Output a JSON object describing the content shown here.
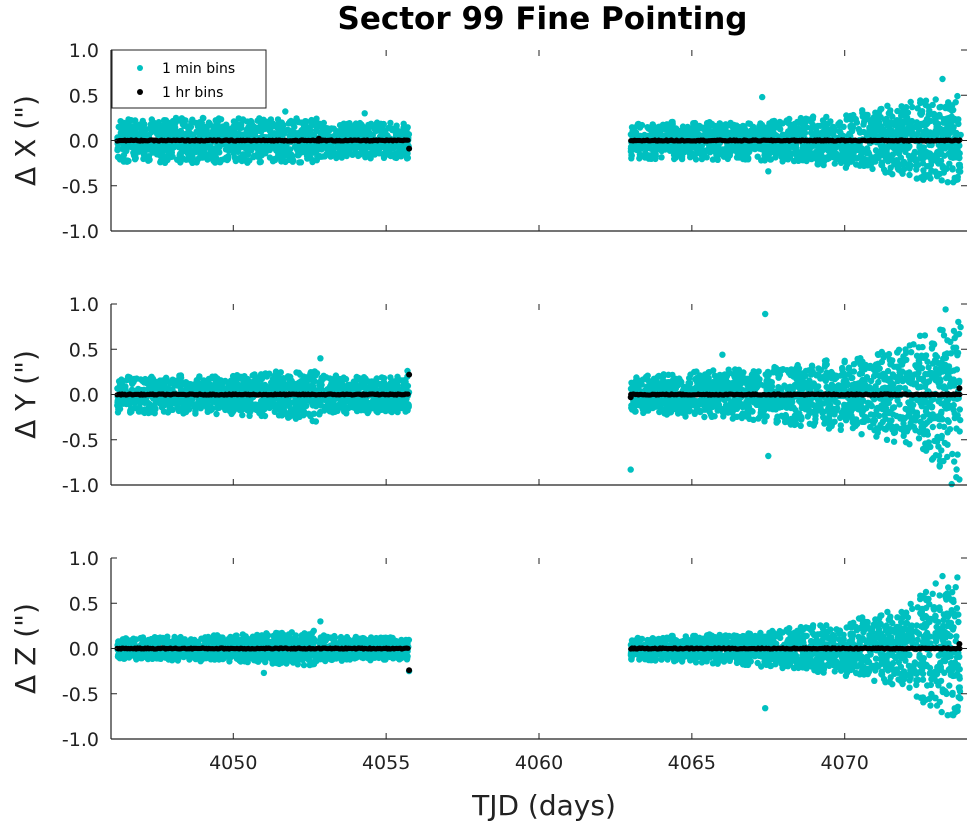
{
  "chart_data": {
    "type": "scatter",
    "title": "Sector 99 Fine Pointing",
    "xlabel": "TJD (days)",
    "xlim": [
      4046.0,
      4074.0
    ],
    "xticks": [
      4050,
      4055,
      4060,
      4065,
      4070
    ],
    "colors": {
      "min_bins": "#00c0c0",
      "hr_bins": "#000000"
    },
    "legend": {
      "position": "top-left",
      "entries": [
        {
          "label": "1 min bins",
          "color": "#00c0c0"
        },
        {
          "label": "1 hr bins",
          "color": "#000000"
        }
      ]
    },
    "segments": [
      [
        4046.2,
        4052.75
      ],
      [
        4052.8,
        4055.75
      ],
      [
        4063.0,
        4067.3
      ],
      [
        4067.35,
        4073.8
      ]
    ],
    "panels": [
      {
        "ylabel": "Δ X (\")",
        "ylim": [
          -1.0,
          1.0
        ],
        "yticks": [
          "1.0",
          "0.5",
          "0.0",
          "-0.5",
          "-1.0"
        ],
        "spread_profile": [
          [
            4046.2,
            0.25
          ],
          [
            4052.75,
            0.25
          ],
          [
            4052.8,
            0.2
          ],
          [
            4055.75,
            0.2
          ],
          [
            4063.0,
            0.2
          ],
          [
            4067.3,
            0.22
          ],
          [
            4067.35,
            0.22
          ],
          [
            4070.0,
            0.3
          ],
          [
            4072.5,
            0.45
          ],
          [
            4073.8,
            0.5
          ]
        ],
        "outliers": [
          [
            4051.7,
            0.32
          ],
          [
            4054.3,
            0.3
          ],
          [
            4055.7,
            -0.07
          ],
          [
            4067.3,
            0.48
          ],
          [
            4067.5,
            -0.34
          ],
          [
            4073.2,
            0.68
          ]
        ],
        "hourly_extras": [
          [
            4052.8,
            0.02
          ],
          [
            4055.75,
            -0.09
          ]
        ]
      },
      {
        "ylabel": "Δ Y (\")",
        "ylim": [
          -1.0,
          1.0
        ],
        "yticks": [
          "1.0",
          "0.5",
          "0.0",
          "-0.5",
          "-1.0"
        ],
        "spread_profile": [
          [
            4046.2,
            0.2
          ],
          [
            4050.0,
            0.22
          ],
          [
            4052.75,
            0.3
          ],
          [
            4052.8,
            0.22
          ],
          [
            4055.75,
            0.2
          ],
          [
            4063.0,
            0.2
          ],
          [
            4065.0,
            0.25
          ],
          [
            4067.3,
            0.3
          ],
          [
            4067.35,
            0.3
          ],
          [
            4070.0,
            0.4
          ],
          [
            4072.0,
            0.55
          ],
          [
            4073.0,
            0.8
          ],
          [
            4073.8,
            0.95
          ]
        ],
        "outliers": [
          [
            4052.85,
            0.4
          ],
          [
            4055.7,
            0.26
          ],
          [
            4063.0,
            -0.83
          ],
          [
            4067.4,
            0.89
          ],
          [
            4066.0,
            0.44
          ],
          [
            4067.5,
            -0.68
          ],
          [
            4073.5,
            -0.99
          ],
          [
            4073.3,
            0.94
          ]
        ],
        "hourly_extras": [
          [
            4055.75,
            0.22
          ],
          [
            4063.0,
            -0.03
          ],
          [
            4073.75,
            0.07
          ]
        ]
      },
      {
        "ylabel": "Δ Z (\")",
        "ylim": [
          -1.0,
          1.0
        ],
        "yticks": [
          "1.0",
          "0.5",
          "0.0",
          "-0.5",
          "-1.0"
        ],
        "spread_profile": [
          [
            4046.2,
            0.12
          ],
          [
            4050.0,
            0.15
          ],
          [
            4052.75,
            0.2
          ],
          [
            4052.8,
            0.15
          ],
          [
            4055.75,
            0.12
          ],
          [
            4063.0,
            0.12
          ],
          [
            4065.0,
            0.15
          ],
          [
            4067.3,
            0.2
          ],
          [
            4067.35,
            0.2
          ],
          [
            4070.0,
            0.3
          ],
          [
            4072.0,
            0.45
          ],
          [
            4073.0,
            0.75
          ],
          [
            4073.8,
            0.8
          ]
        ],
        "outliers": [
          [
            4052.85,
            0.3
          ],
          [
            4051.0,
            -0.27
          ],
          [
            4055.75,
            -0.25
          ],
          [
            4067.4,
            -0.66
          ],
          [
            4073.5,
            -0.73
          ],
          [
            4073.2,
            0.8
          ]
        ],
        "hourly_extras": [
          [
            4055.75,
            -0.24
          ],
          [
            4073.75,
            0.05
          ]
        ]
      }
    ]
  }
}
